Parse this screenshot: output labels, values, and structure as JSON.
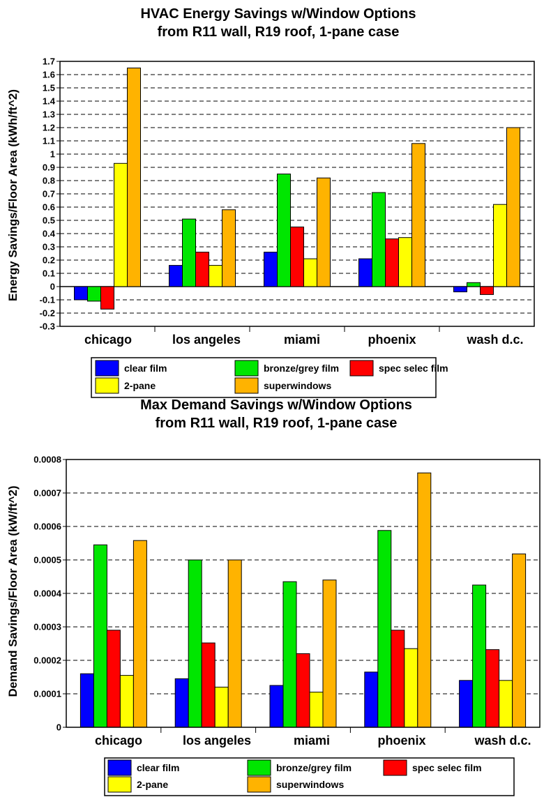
{
  "chart_data": [
    {
      "type": "bar",
      "title": "HVAC Energy Savings w/Window Options",
      "subtitle": "from R11 wall, R19 roof, 1-pane case",
      "xlabel": "",
      "ylabel": "Energy Savings/Floor Area (kWh/ft^2)",
      "ylim": [
        -0.3,
        1.7
      ],
      "yticks": [
        "1.7",
        "1.6",
        "1.5",
        "1.4",
        "1.3",
        "1.2",
        "1.1",
        "1",
        "0.9",
        "0.8",
        "0.7",
        "0.6",
        "0.5",
        "0.4",
        "0.3",
        "0.2",
        "0.1",
        "0",
        "-0.1",
        "-0.2",
        "-0.3"
      ],
      "grid": "dashed horizontal",
      "categories": [
        "chicago",
        "los angeles",
        "miami",
        "phoenix",
        "wash d.c."
      ],
      "series": [
        {
          "name": "clear film",
          "color": "#0000ff",
          "values": [
            -0.1,
            0.16,
            0.26,
            0.21,
            -0.04
          ]
        },
        {
          "name": "bronze/grey film",
          "color": "#00e600",
          "values": [
            -0.11,
            0.51,
            0.85,
            0.71,
            0.03
          ]
        },
        {
          "name": "spec selec film",
          "color": "#ff0000",
          "values": [
            -0.17,
            0.26,
            0.45,
            0.36,
            -0.06
          ]
        },
        {
          "name": "2-pane",
          "color": "#ffff00",
          "values": [
            0.93,
            0.16,
            0.21,
            0.37,
            0.62
          ]
        },
        {
          "name": "superwindows",
          "color": "#ffb300",
          "values": [
            1.65,
            0.58,
            0.82,
            1.08,
            1.2
          ]
        }
      ],
      "legend": [
        "clear film",
        "bronze/grey film",
        "spec selec film",
        "2-pane",
        "superwindows"
      ],
      "legend_position": "bottom"
    },
    {
      "type": "bar",
      "title": "Max Demand Savings w/Window Options",
      "subtitle": "from R11 wall, R19 roof, 1-pane case",
      "xlabel": "",
      "ylabel": "Demand Savings/Floor Area (kW/ft^2)",
      "ylim": [
        0,
        0.0008
      ],
      "yticks": [
        "0.0008",
        "0.0007",
        "0.0006",
        "0.0005",
        "0.0004",
        "0.0003",
        "0.0002",
        "0.0001",
        "0"
      ],
      "grid": "dashed horizontal",
      "categories": [
        "chicago",
        "los angeles",
        "miami",
        "phoenix",
        "wash d.c."
      ],
      "series": [
        {
          "name": "clear film",
          "color": "#0000ff",
          "values": [
            0.00016,
            0.000145,
            0.000125,
            0.000165,
            0.00014
          ]
        },
        {
          "name": "bronze/grey film",
          "color": "#00e600",
          "values": [
            0.000545,
            0.0005,
            0.000435,
            0.000588,
            0.000425
          ]
        },
        {
          "name": "spec selec film",
          "color": "#ff0000",
          "values": [
            0.00029,
            0.000252,
            0.00022,
            0.00029,
            0.000232
          ]
        },
        {
          "name": "2-pane",
          "color": "#ffff00",
          "values": [
            0.000155,
            0.00012,
            0.000105,
            0.000235,
            0.00014
          ]
        },
        {
          "name": "superwindows",
          "color": "#ffb300",
          "values": [
            0.000558,
            0.0005,
            0.00044,
            0.00076,
            0.000518
          ]
        }
      ],
      "legend": [
        "clear film",
        "bronze/grey film",
        "spec selec film",
        "2-pane",
        "superwindows"
      ],
      "legend_position": "bottom"
    }
  ]
}
